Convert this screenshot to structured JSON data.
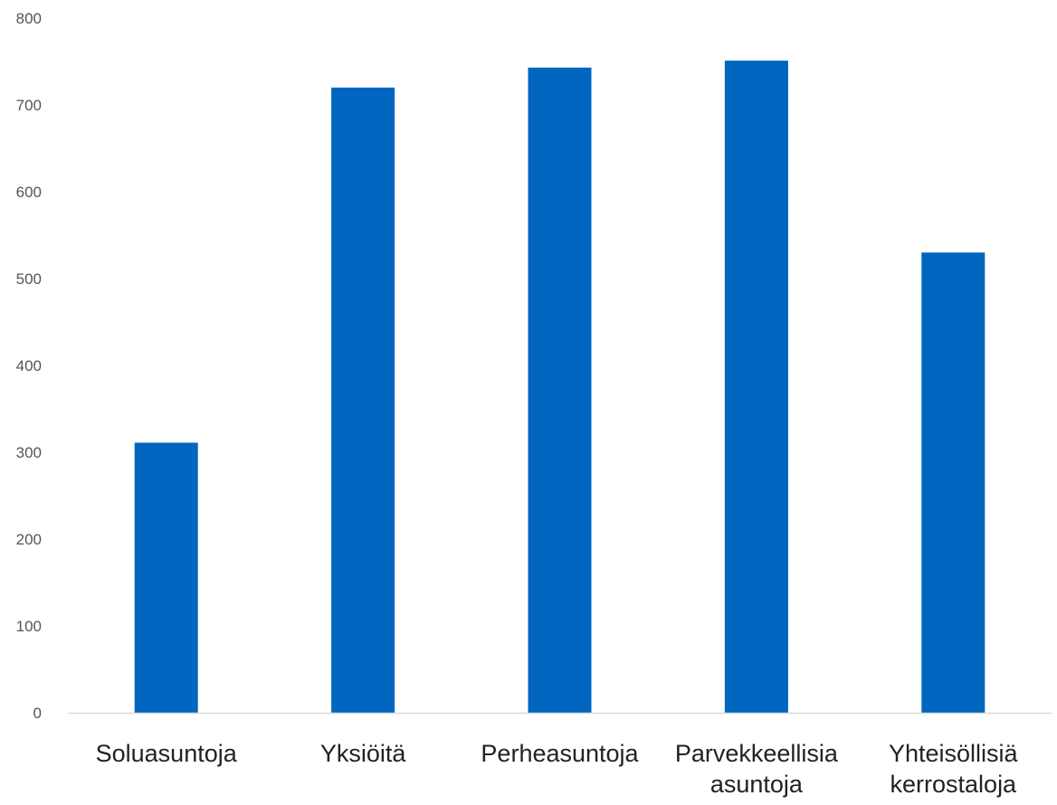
{
  "chart_data": {
    "type": "bar",
    "title": "",
    "xlabel": "",
    "ylabel": "",
    "categories": [
      [
        "Soluasuntoja"
      ],
      [
        "Yksiöitä"
      ],
      [
        "Perheasuntoja"
      ],
      [
        "Parvekkeellisia",
        "asuntoja"
      ],
      [
        "Yhteisöllisiä",
        "kerrostaloja"
      ]
    ],
    "values": [
      311,
      720,
      743,
      751,
      530
    ],
    "ylim": [
      0,
      800
    ],
    "yticks": [
      0,
      100,
      200,
      300,
      400,
      500,
      600,
      700,
      800
    ],
    "bar_color": "#0066C0",
    "axis_color": "#D9D9D9",
    "grid": false,
    "legend": "none"
  }
}
